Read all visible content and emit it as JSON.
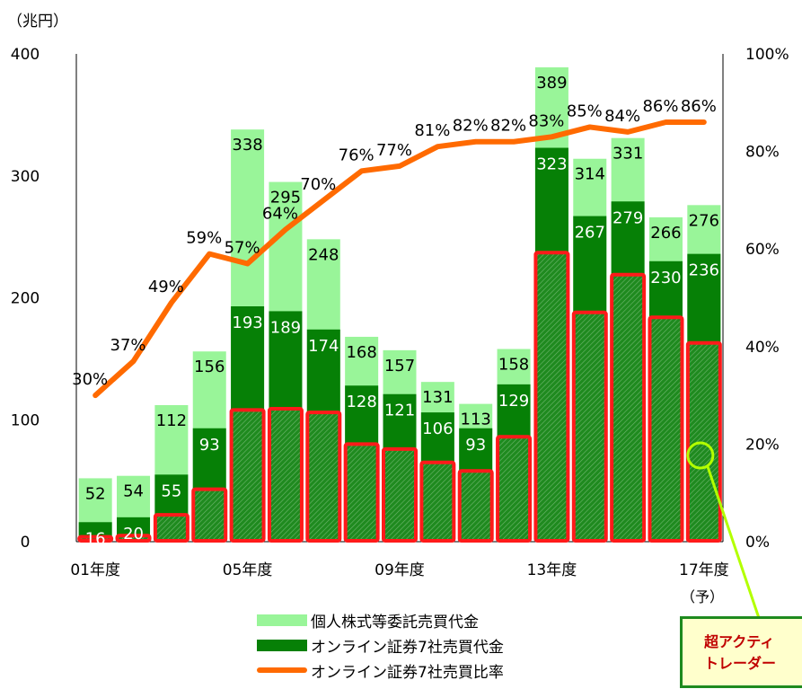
{
  "chart_data": {
    "type": "bar",
    "y_unit_label": "（兆円）",
    "ylim": [
      0,
      400
    ],
    "yticks": [
      0,
      100,
      200,
      300,
      400
    ],
    "y2lim": [
      0,
      100
    ],
    "y2ticks": [
      "0%",
      "20%",
      "40%",
      "60%",
      "80%",
      "100%"
    ],
    "x_tick_labels": [
      {
        "index": 0,
        "label": "01年度"
      },
      {
        "index": 4,
        "label": "05年度"
      },
      {
        "index": 8,
        "label": "09年度"
      },
      {
        "index": 12,
        "label": "13年度"
      },
      {
        "index": 16,
        "label": "17年度"
      }
    ],
    "x_sublabel": {
      "index": 16,
      "label": "（予）"
    },
    "individual_total": [
      52,
      54,
      112,
      156,
      338,
      295,
      248,
      168,
      157,
      131,
      113,
      158,
      389,
      314,
      331,
      266,
      276
    ],
    "individual_total_labels": [
      "52",
      "54",
      "112",
      "156",
      "338",
      "295",
      "248",
      "168",
      "157",
      "131",
      "113",
      "158",
      "389",
      "314",
      "331",
      "266",
      "276"
    ],
    "online7": [
      16,
      20,
      55,
      93,
      193,
      189,
      174,
      128,
      121,
      106,
      93,
      129,
      323,
      267,
      279,
      230,
      236
    ],
    "online7_labels": [
      "16",
      "20",
      "55",
      "93",
      "193",
      "189",
      "174",
      "128",
      "121",
      "106",
      "93",
      "129",
      "323",
      "267",
      "279",
      "230",
      "236"
    ],
    "hyper_active": [
      4,
      5,
      22,
      43,
      108,
      109,
      106,
      80,
      76,
      65,
      58,
      86,
      237,
      188,
      219,
      184,
      163
    ],
    "ratio": [
      30,
      37,
      49,
      59,
      57,
      64,
      70,
      76,
      77,
      81,
      82,
      82,
      83,
      85,
      84,
      86,
      86
    ],
    "ratio_labels": [
      "30%",
      "37%",
      "49%",
      "59%",
      "57%",
      "64%",
      "70%",
      "76%",
      "77%",
      "81%",
      "82%",
      "82%",
      "83%",
      "85%",
      "84%",
      "86%",
      "86%"
    ],
    "legend": [
      {
        "label": "個人株式等委託売買代金",
        "color": "#99f599",
        "kind": "bar"
      },
      {
        "label": "オンライン証券7社売買代金",
        "color": "#068006",
        "kind": "bar"
      },
      {
        "label": "オンライン証券7社売買比率",
        "color": "#ff6a00",
        "kind": "line"
      }
    ],
    "annotation": {
      "line1": "超アクティ",
      "line2": "トレーダー"
    }
  }
}
